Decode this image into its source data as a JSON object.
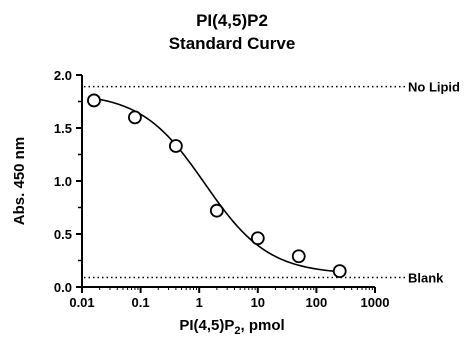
{
  "chart_data": {
    "type": "scatter",
    "title": "PI(4,5)P2",
    "subtitle": "Standard Curve",
    "xlabel": {
      "main": "PI(4,5)P",
      "sub": "2",
      "tail": ", pmol"
    },
    "ylabel": "Abs. 450 nm",
    "xscale": "log",
    "xlim": [
      0.01,
      1000
    ],
    "ylim": [
      0.0,
      2.0
    ],
    "xticks": [
      0.01,
      0.1,
      1,
      10,
      100,
      1000
    ],
    "xtick_labels": [
      "0.01",
      "0.1",
      "1",
      "10",
      "100",
      "1000"
    ],
    "yticks": [
      0.0,
      0.5,
      1.0,
      1.5,
      2.0
    ],
    "ytick_labels": [
      "0.0",
      "0.5",
      "1.0",
      "1.5",
      "2.0"
    ],
    "grid": false,
    "series": [
      {
        "marker": "open-circle",
        "x": [
          0.016,
          0.08,
          0.4,
          2,
          10,
          50,
          250
        ],
        "y": [
          1.76,
          1.6,
          1.33,
          0.72,
          0.46,
          0.29,
          0.15
        ]
      }
    ],
    "fit_curve": {
      "model": "4PL",
      "top": 1.83,
      "bottom": 0.12,
      "ec50": 1.25,
      "hill": 0.8,
      "x_range": [
        0.016,
        250
      ]
    },
    "reference_lines": [
      {
        "label": "No Lipid",
        "y": 1.89,
        "style": "dotted"
      },
      {
        "label": "Blank",
        "y": 0.09,
        "style": "dotted"
      }
    ]
  }
}
